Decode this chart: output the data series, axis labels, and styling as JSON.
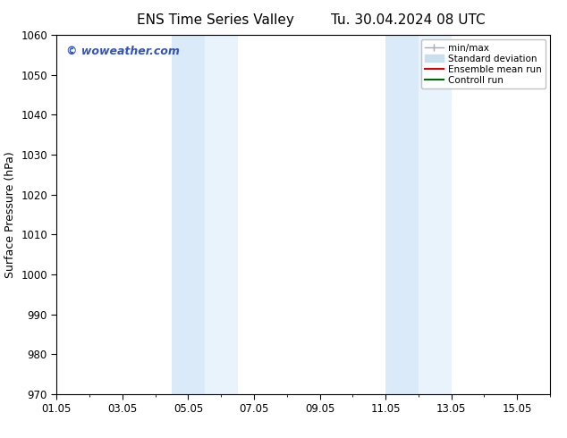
{
  "title_left": "ENS Time Series Valley",
  "title_right": "Tu. 30.04.2024 08 UTC",
  "ylabel": "Surface Pressure (hPa)",
  "ylim": [
    970,
    1060
  ],
  "yticks": [
    970,
    980,
    990,
    1000,
    1010,
    1020,
    1030,
    1040,
    1050,
    1060
  ],
  "xtick_labels": [
    "01.05",
    "03.05",
    "05.05",
    "07.05",
    "09.05",
    "11.05",
    "13.05",
    "15.05"
  ],
  "xtick_positions": [
    0,
    2,
    4,
    6,
    8,
    10,
    12,
    14
  ],
  "xlim": [
    0,
    15
  ],
  "background_color": "#ffffff",
  "plot_bg_color": "#ffffff",
  "shaded_bands": [
    {
      "x_start": 3.5,
      "x_end": 4.5,
      "color": "#daeaf8"
    },
    {
      "x_start": 4.5,
      "x_end": 5.5,
      "color": "#e8f3fb"
    },
    {
      "x_start": 10.0,
      "x_end": 11.0,
      "color": "#daeaf8"
    },
    {
      "x_start": 11.0,
      "x_end": 12.0,
      "color": "#e8f3fb"
    }
  ],
  "watermark_text": "© woweather.com",
  "watermark_color": "#3355bb",
  "legend_items": [
    {
      "label": "min/max",
      "color": "#aaaaaa",
      "lw": 1.0
    },
    {
      "label": "Standard deviation",
      "color": "#c8dff0",
      "lw": 6
    },
    {
      "label": "Ensemble mean run",
      "color": "#dd0000",
      "lw": 1.5
    },
    {
      "label": "Controll run",
      "color": "#006600",
      "lw": 1.5
    }
  ],
  "title_fontsize": 11,
  "tick_fontsize": 8.5,
  "label_fontsize": 9,
  "watermark_fontsize": 9,
  "legend_fontsize": 7.5,
  "font_family": "DejaVu Sans"
}
